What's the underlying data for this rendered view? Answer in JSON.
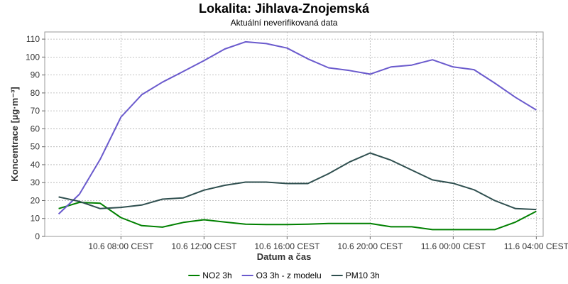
{
  "chart_data": {
    "type": "line",
    "title": "Lokalita: Jihlava-Znojemská",
    "subtitle": "Aktuální neverifikovaná data",
    "xlabel": "Datum a čas",
    "ylabel": "Koncentrace [µg·m⁻³]",
    "ylim": [
      0,
      114
    ],
    "y_ticks": [
      0,
      10,
      20,
      30,
      40,
      50,
      60,
      70,
      80,
      90,
      100,
      110
    ],
    "xlim_hours": [
      4.33,
      28.33
    ],
    "x_ticks": [
      {
        "hour": 8,
        "label": "10.6 08:00 CEST"
      },
      {
        "hour": 12,
        "label": "10.6 12:00 CEST"
      },
      {
        "hour": 16,
        "label": "10.6 16:00 CEST"
      },
      {
        "hour": 20,
        "label": "10.6 20:00 CEST"
      },
      {
        "hour": 24,
        "label": "11.6 00:00 CEST"
      },
      {
        "hour": 28,
        "label": "11.6 04:00 CEST"
      }
    ],
    "x_hours": [
      5,
      6,
      7,
      8,
      9,
      10,
      11,
      12,
      13,
      14,
      15,
      16,
      17,
      18,
      19,
      20,
      21,
      22,
      23,
      24,
      25,
      26,
      27,
      28
    ],
    "grid": true,
    "legend_position": "bottom",
    "series": [
      {
        "name": "NO2 3h",
        "color": "#008000",
        "values": [
          15.5,
          19,
          18.5,
          10.5,
          6,
          5.2,
          7.8,
          9.3,
          8,
          6.8,
          6.6,
          6.6,
          6.8,
          7.2,
          7.2,
          7.2,
          5.4,
          5.4,
          3.8,
          3.8,
          3.8,
          3.8,
          8,
          14
        ]
      },
      {
        "name": "O3 3h - z modelu",
        "color": "#6a5acd",
        "values": [
          12.5,
          23.5,
          43,
          66.5,
          79,
          86,
          92,
          98,
          104.5,
          108.5,
          107.5,
          105,
          99,
          94,
          92.5,
          90.5,
          94.5,
          95.5,
          98.5,
          94.5,
          93,
          85.5,
          77.5,
          70.5
        ]
      },
      {
        "name": "PM10 3h",
        "color": "#2f4f4f",
        "values": [
          22,
          19.5,
          15.5,
          16.2,
          17.5,
          20.8,
          21.5,
          25.8,
          28.5,
          30.3,
          30.3,
          29.5,
          29.5,
          35,
          41.5,
          46.5,
          42.5,
          37,
          31.5,
          29.6,
          26,
          20,
          15.5,
          15
        ]
      }
    ]
  }
}
